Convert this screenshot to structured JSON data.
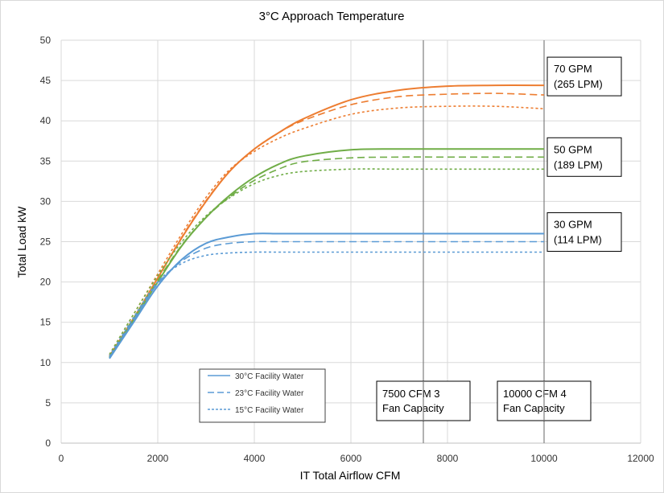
{
  "chart_data": {
    "type": "line",
    "title": "3°C Approach Temperature",
    "xlabel": "IT Total Airflow CFM",
    "ylabel": "Total Load kW",
    "xlim": [
      0,
      12000
    ],
    "ylim": [
      0,
      50
    ],
    "x_ticks": [
      "0",
      "2000",
      "4000",
      "6000",
      "8000",
      "10000",
      "12000"
    ],
    "y_ticks": [
      "0",
      "5",
      "10",
      "15",
      "20",
      "25",
      "30",
      "35",
      "40",
      "45",
      "50"
    ],
    "grid": "horizontal",
    "colors": {
      "gpm70": "#ED7D31",
      "gpm50": "#70AD47",
      "gpm30": "#5B9BD5",
      "reference": "#7F7F7F",
      "grid": "#D9D9D9"
    },
    "legend": {
      "placement": "bottom-left",
      "entries": [
        {
          "label": "30°C Facility Water",
          "dash": "solid"
        },
        {
          "label": "23°C Facility Water",
          "dash": "dashed"
        },
        {
          "label": "15°C Facility Water",
          "dash": "dotted"
        }
      ]
    },
    "reference_lines": [
      {
        "x": 7500,
        "label_line1": "7500 CFM 3",
        "label_line2": "Fan Capacity"
      },
      {
        "x": 10000,
        "label_line1": "10000 CFM 4",
        "label_line2": "Fan Capacity"
      }
    ],
    "group_labels": [
      {
        "group": "gpm70",
        "line1": "70 GPM",
        "line2": "(265 LPM)"
      },
      {
        "group": "gpm50",
        "line1": "50 GPM",
        "line2": "(189 LPM)"
      },
      {
        "group": "gpm30",
        "line1": "30 GPM",
        "line2": "(114 LPM)"
      }
    ],
    "series": [
      {
        "group": "gpm70",
        "dash": "solid",
        "x": [
          1000,
          1500,
          2000,
          2500,
          3000,
          3500,
          4000,
          4500,
          5000,
          6000,
          7000,
          8000,
          9000,
          10000
        ],
        "y": [
          10.8,
          15.5,
          20.5,
          25.5,
          30.0,
          33.8,
          36.5,
          38.5,
          40.2,
          42.6,
          43.8,
          44.3,
          44.4,
          44.4
        ]
      },
      {
        "group": "gpm70",
        "dash": "dashed",
        "x": [
          1000,
          1500,
          2000,
          2500,
          3000,
          3500,
          4000,
          4500,
          5000,
          6000,
          7000,
          8000,
          9000,
          10000
        ],
        "y": [
          10.8,
          15.5,
          20.5,
          25.6,
          30.1,
          33.8,
          36.5,
          38.5,
          40.0,
          42.0,
          43.0,
          43.3,
          43.4,
          43.2
        ]
      },
      {
        "group": "gpm70",
        "dash": "dotted",
        "x": [
          1000,
          1500,
          2000,
          2500,
          3000,
          3500,
          4000,
          4500,
          5000,
          6000,
          7000,
          8000,
          9000,
          10000
        ],
        "y": [
          11.0,
          16.0,
          21.0,
          26.0,
          30.5,
          34.0,
          36.2,
          37.8,
          39.0,
          40.8,
          41.6,
          41.8,
          41.8,
          41.5
        ]
      },
      {
        "group": "gpm50",
        "dash": "solid",
        "x": [
          1000,
          1500,
          2000,
          2500,
          3000,
          3500,
          4000,
          4500,
          5000,
          6000,
          7000,
          8000,
          9000,
          10000
        ],
        "y": [
          10.6,
          15.3,
          20.0,
          24.5,
          28.0,
          30.8,
          33.0,
          34.6,
          35.6,
          36.4,
          36.5,
          36.5,
          36.5,
          36.5
        ]
      },
      {
        "group": "gpm50",
        "dash": "dashed",
        "x": [
          1000,
          1500,
          2000,
          2500,
          3000,
          3500,
          4000,
          4500,
          5000,
          6000,
          7000,
          8000,
          9000,
          10000
        ],
        "y": [
          10.7,
          15.5,
          20.2,
          24.6,
          28.0,
          30.6,
          32.6,
          34.0,
          34.9,
          35.4,
          35.5,
          35.5,
          35.5,
          35.5
        ]
      },
      {
        "group": "gpm50",
        "dash": "dotted",
        "x": [
          1000,
          1500,
          2000,
          2500,
          3000,
          3500,
          4000,
          4500,
          5000,
          6000,
          7000,
          8000,
          9000,
          10000
        ],
        "y": [
          11.0,
          16.0,
          20.8,
          25.0,
          28.2,
          30.5,
          32.2,
          33.2,
          33.7,
          34.0,
          34.0,
          34.0,
          34.0,
          34.0
        ]
      },
      {
        "group": "gpm30",
        "dash": "solid",
        "x": [
          1000,
          1500,
          2000,
          2500,
          3000,
          3500,
          4000,
          4500,
          5000,
          6000,
          7000,
          8000,
          9000,
          10000
        ],
        "y": [
          10.5,
          15.0,
          19.5,
          22.8,
          24.8,
          25.6,
          26.0,
          26.0,
          26.0,
          26.0,
          26.0,
          26.0,
          26.0,
          26.0
        ]
      },
      {
        "group": "gpm30",
        "dash": "dashed",
        "x": [
          1000,
          1500,
          2000,
          2500,
          3000,
          3500,
          4000,
          4500,
          5000,
          6000,
          7000,
          8000,
          9000,
          10000
        ],
        "y": [
          10.6,
          15.3,
          19.8,
          22.6,
          24.2,
          24.8,
          25.0,
          25.0,
          25.0,
          25.0,
          25.0,
          25.0,
          25.0,
          25.0
        ]
      },
      {
        "group": "gpm30",
        "dash": "dotted",
        "x": [
          1000,
          1500,
          2000,
          2500,
          3000,
          3500,
          4000,
          4500,
          5000,
          6000,
          7000,
          8000,
          9000,
          10000
        ],
        "y": [
          10.8,
          15.6,
          20.0,
          22.3,
          23.3,
          23.6,
          23.7,
          23.7,
          23.7,
          23.7,
          23.7,
          23.7,
          23.7,
          23.7
        ]
      }
    ]
  }
}
